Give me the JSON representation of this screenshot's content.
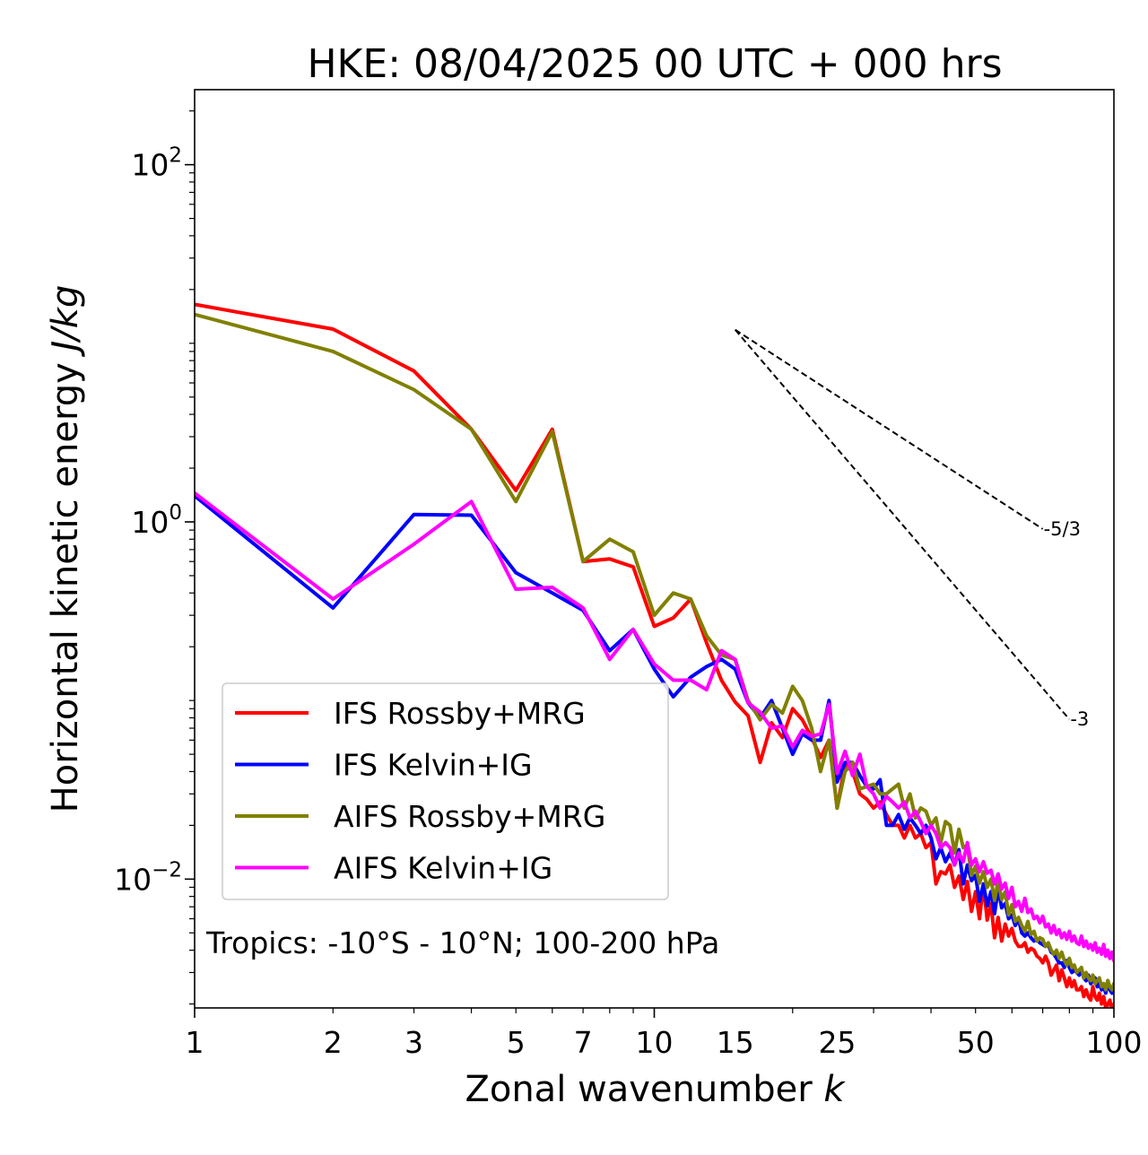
{
  "chart_data": {
    "type": "line",
    "title": "HKE: 08/04/2025 00 UTC + 000 hrs",
    "xlabel": "Zonal wavenumber",
    "xlabel_var": "k",
    "ylabel": "Horizontal kinetic energy",
    "ylabel_unit": "J/kg",
    "xscale": "log",
    "yscale": "log",
    "xlim": [
      1,
      100
    ],
    "ylim": [
      0.0019,
      263
    ],
    "grid": false,
    "legend_position": "center-left",
    "xticks": [
      {
        "value": 1,
        "label": "1"
      },
      {
        "value": 2,
        "label": "2"
      },
      {
        "value": 3,
        "label": "3"
      },
      {
        "value": 5,
        "label": "5"
      },
      {
        "value": 7,
        "label": "7"
      },
      {
        "value": 10,
        "label": "10"
      },
      {
        "value": 15,
        "label": "15"
      },
      {
        "value": 25,
        "label": "25"
      },
      {
        "value": 50,
        "label": "50"
      },
      {
        "value": 100,
        "label": "100"
      }
    ],
    "yticks": [
      {
        "value": 100,
        "base": "10",
        "exp": "2"
      },
      {
        "value": 1,
        "base": "10",
        "exp": "0"
      },
      {
        "value": 0.01,
        "base": "10",
        "exp": "−2"
      }
    ],
    "annotation": "Tropics: -10°S - 10°N; 100-200 hPa",
    "reference_lines": [
      {
        "label": "-5/3",
        "slope": -1.6667,
        "x0": 15,
        "y0": 11.9,
        "x1": 70
      },
      {
        "label": "-3",
        "slope": -3,
        "x0": 15,
        "y0": 11.9,
        "x1": 80
      }
    ],
    "x": [
      1,
      2,
      3,
      4,
      5,
      6,
      7,
      8,
      9,
      10,
      11,
      12,
      13,
      14,
      15,
      16,
      17,
      18,
      19,
      20,
      21,
      22,
      23,
      24,
      25,
      26,
      27,
      28,
      29,
      30,
      31,
      32,
      33,
      34,
      35,
      36,
      37,
      38,
      39,
      40,
      41,
      42,
      43,
      44,
      45,
      46,
      47,
      48,
      49,
      50,
      51,
      52,
      53,
      54,
      55,
      56,
      57,
      58,
      59,
      60,
      61,
      62,
      63,
      64,
      65,
      66,
      67,
      68,
      69,
      70,
      71,
      72,
      73,
      74,
      75,
      76,
      77,
      78,
      79,
      80,
      81,
      82,
      83,
      84,
      85,
      86,
      87,
      88,
      89,
      90,
      91,
      92,
      93,
      94,
      95,
      96,
      97,
      98,
      99,
      100
    ],
    "series": [
      {
        "name": "IFS Rossby+MRG",
        "color": "#ff0000",
        "values": [
          16.5,
          12.0,
          7.0,
          3.3,
          1.5,
          3.3,
          0.6,
          0.62,
          0.56,
          0.26,
          0.29,
          0.37,
          0.21,
          0.13,
          0.098,
          0.082,
          0.045,
          0.075,
          0.062,
          0.09,
          0.078,
          0.062,
          0.048,
          0.06,
          0.025,
          0.044,
          0.04,
          0.03,
          0.028,
          0.025,
          0.027,
          0.023,
          0.02,
          0.02,
          0.017,
          0.02,
          0.017,
          0.018,
          0.015,
          0.016,
          0.0094,
          0.011,
          0.0107,
          0.012,
          0.009,
          0.0104,
          0.0077,
          0.0097,
          0.0066,
          0.0085,
          0.006,
          0.0093,
          0.0059,
          0.0073,
          0.0047,
          0.0061,
          0.0045,
          0.0056,
          0.0048,
          0.0053,
          0.0045,
          0.0042,
          0.0042,
          0.0044,
          0.0039,
          0.0041,
          0.004,
          0.0037,
          0.0036,
          0.0034,
          0.0037,
          0.0034,
          0.0029,
          0.0031,
          0.0033,
          0.0027,
          0.0031,
          0.0028,
          0.0025,
          0.0028,
          0.0025,
          0.0027,
          0.0024,
          0.0024,
          0.0025,
          0.0022,
          0.0024,
          0.0022,
          0.0021,
          0.0025,
          0.0022,
          0.0021,
          0.0023,
          0.002,
          0.0022,
          0.0019,
          0.002,
          0.0021,
          0.0018,
          0.002
        ]
      },
      {
        "name": "IFS Kelvin+IG",
        "color": "#0000ff",
        "values": [
          1.4,
          0.33,
          1.1,
          1.09,
          0.52,
          0.4,
          0.32,
          0.19,
          0.25,
          0.15,
          0.105,
          0.135,
          0.155,
          0.17,
          0.15,
          0.097,
          0.08,
          0.1,
          0.07,
          0.05,
          0.065,
          0.06,
          0.06,
          0.1,
          0.035,
          0.045,
          0.045,
          0.038,
          0.033,
          0.032,
          0.036,
          0.02,
          0.02,
          0.023,
          0.019,
          0.022,
          0.02,
          0.018,
          0.02,
          0.017,
          0.013,
          0.015,
          0.0125,
          0.014,
          0.012,
          0.0146,
          0.0094,
          0.012,
          0.0098,
          0.0105,
          0.0075,
          0.0094,
          0.0071,
          0.0085,
          0.0064,
          0.0088,
          0.0069,
          0.0073,
          0.006,
          0.0063,
          0.0055,
          0.006,
          0.005,
          0.0048,
          0.005,
          0.0047,
          0.0045,
          0.0046,
          0.0044,
          0.0043,
          0.0042,
          0.0043,
          0.0039,
          0.0038,
          0.0036,
          0.0034,
          0.0034,
          0.0032,
          0.0035,
          0.0032,
          0.003,
          0.0031,
          0.003,
          0.0029,
          0.0031,
          0.0028,
          0.0027,
          0.0029,
          0.0026,
          0.0027,
          0.0028,
          0.0025,
          0.0026,
          0.0024,
          0.0025,
          0.0023,
          0.0027,
          0.0024,
          0.0023,
          0.0025
        ]
      },
      {
        "name": "AIFS Rossby+MRG",
        "color": "#808000",
        "values": [
          14.5,
          9.0,
          5.5,
          3.3,
          1.3,
          3.2,
          0.6,
          0.8,
          0.68,
          0.3,
          0.4,
          0.37,
          0.23,
          0.18,
          0.17,
          0.1,
          0.078,
          0.095,
          0.085,
          0.12,
          0.1,
          0.07,
          0.04,
          0.06,
          0.025,
          0.04,
          0.045,
          0.032,
          0.033,
          0.034,
          0.03,
          0.03,
          0.032,
          0.034,
          0.025,
          0.03,
          0.022,
          0.025,
          0.024,
          0.02,
          0.022,
          0.016,
          0.021,
          0.02,
          0.014,
          0.019,
          0.015,
          0.0155,
          0.0105,
          0.0118,
          0.0095,
          0.011,
          0.009,
          0.01,
          0.0076,
          0.0098,
          0.0077,
          0.0085,
          0.0063,
          0.0072,
          0.0058,
          0.0061,
          0.0055,
          0.0051,
          0.0058,
          0.0049,
          0.0051,
          0.0045,
          0.0047,
          0.0046,
          0.0042,
          0.0044,
          0.004,
          0.0038,
          0.004,
          0.0036,
          0.0039,
          0.0035,
          0.0033,
          0.0036,
          0.0032,
          0.0033,
          0.003,
          0.0031,
          0.0032,
          0.0028,
          0.003,
          0.0028,
          0.0027,
          0.0029,
          0.0026,
          0.0027,
          0.0028,
          0.0025,
          0.0026,
          0.0024,
          0.0027,
          0.0025,
          0.0024,
          0.0026
        ]
      },
      {
        "name": "AIFS Kelvin+IG",
        "color": "#ff00ff",
        "values": [
          1.45,
          0.37,
          0.75,
          1.3,
          0.42,
          0.43,
          0.33,
          0.17,
          0.25,
          0.16,
          0.13,
          0.13,
          0.115,
          0.19,
          0.17,
          0.097,
          0.086,
          0.07,
          0.072,
          0.055,
          0.068,
          0.063,
          0.065,
          0.095,
          0.039,
          0.052,
          0.038,
          0.05,
          0.033,
          0.03,
          0.025,
          0.029,
          0.027,
          0.025,
          0.027,
          0.022,
          0.024,
          0.021,
          0.018,
          0.02,
          0.018,
          0.015,
          0.016,
          0.015,
          0.012,
          0.014,
          0.0125,
          0.016,
          0.012,
          0.013,
          0.011,
          0.0125,
          0.0108,
          0.0112,
          0.0094,
          0.0107,
          0.0088,
          0.0095,
          0.0078,
          0.009,
          0.007,
          0.0075,
          0.0066,
          0.0078,
          0.0065,
          0.0068,
          0.006,
          0.0062,
          0.0057,
          0.0062,
          0.0054,
          0.0056,
          0.005,
          0.0055,
          0.0049,
          0.0052,
          0.0047,
          0.005,
          0.0046,
          0.0051,
          0.0045,
          0.0048,
          0.0044,
          0.0043,
          0.0048,
          0.0042,
          0.0045,
          0.0041,
          0.0043,
          0.004,
          0.0044,
          0.0039,
          0.0041,
          0.0038,
          0.0043,
          0.0037,
          0.004,
          0.0036,
          0.0039,
          0.0035
        ]
      }
    ]
  }
}
